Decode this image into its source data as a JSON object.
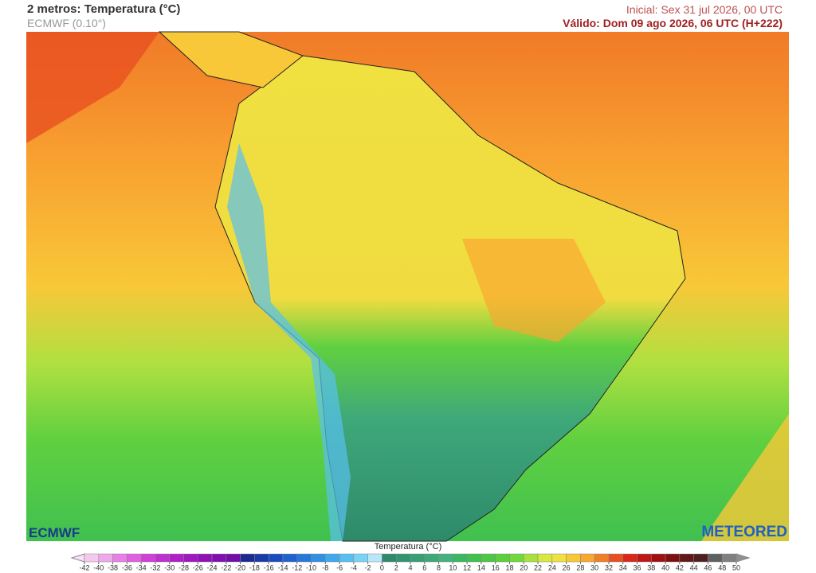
{
  "header": {
    "title": "2 metros: Temperatura (°C)",
    "model": "ECMWF (0.10°)",
    "initial": "Inicial: Sex 31 jul 2026, 00 UTC",
    "valid": "Válido: Dom 09 ago 2026, 06 UTC (H+222)"
  },
  "logos": {
    "left": "ECMWF",
    "right": "METEORED"
  },
  "colorbar": {
    "label": "Temperatura (°C)",
    "ticks": [
      -42,
      -40,
      -38,
      -36,
      -34,
      -32,
      -30,
      -28,
      -26,
      -24,
      -22,
      -20,
      -18,
      -16,
      -14,
      -12,
      -10,
      -8,
      -6,
      -4,
      -2,
      0,
      2,
      4,
      6,
      8,
      10,
      12,
      14,
      16,
      18,
      20,
      22,
      24,
      26,
      28,
      30,
      32,
      34,
      36,
      38,
      40,
      42,
      44,
      46,
      48,
      50
    ],
    "colors": [
      "#f5c8f0",
      "#f0a8ec",
      "#e880e6",
      "#e060e0",
      "#d040d8",
      "#c030d0",
      "#b020c8",
      "#a018c0",
      "#9010b8",
      "#8010b0",
      "#7010a8",
      "#1a2a90",
      "#1a3aa8",
      "#1a4cc0",
      "#2060d0",
      "#2878dc",
      "#3090e4",
      "#40a8ec",
      "#58c0f0",
      "#78d4f4",
      "#b8e8f8",
      "#2e8a6a",
      "#329470",
      "#389e76",
      "#3ea87a",
      "#44b27e",
      "#38b860",
      "#40c050",
      "#4cc844",
      "#5ad03c",
      "#70d838",
      "#a8e040",
      "#d8e840",
      "#f0e040",
      "#f8c838",
      "#f8a830",
      "#f08028",
      "#e85020",
      "#d82818",
      "#c01818",
      "#a01010",
      "#801010",
      "#601818",
      "#502020",
      "#606060",
      "#808080"
    ]
  }
}
